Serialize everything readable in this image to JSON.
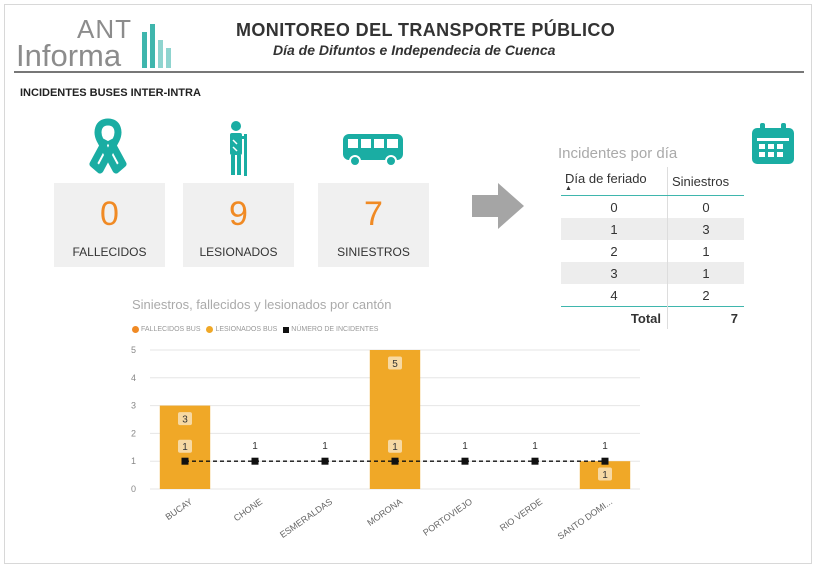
{
  "header": {
    "logo_top": "ANT",
    "logo_bottom": "Informa",
    "title": "MONITOREO DEL TRANSPORTE PÚBLICO",
    "subtitle": "Día de Difuntos e Independecia de Cuenca"
  },
  "section_title": "INCIDENTES BUSES INTER-INTRA",
  "kpis": [
    {
      "value": "0",
      "label": "FALLECIDOS",
      "icon": "ribbon-icon"
    },
    {
      "value": "9",
      "label": "LESIONADOS",
      "icon": "injured-person-icon"
    },
    {
      "value": "7",
      "label": "SINIESTROS",
      "icon": "bus-icon"
    }
  ],
  "colors": {
    "teal": "#1aada3",
    "orange": "#f08a24",
    "bar": "#f0a827",
    "kpi_bg": "#f0f0f0"
  },
  "day_table": {
    "title": "Incidentes por día",
    "headers": [
      "Día de feriado",
      "Siniestros"
    ],
    "rows": [
      [
        "0",
        "0"
      ],
      [
        "1",
        "3"
      ],
      [
        "2",
        "1"
      ],
      [
        "3",
        "1"
      ],
      [
        "4",
        "2"
      ]
    ],
    "total_label": "Total",
    "total_value": "7"
  },
  "chart_data": {
    "type": "bar",
    "title": "Siniestros, fallecidos y lesionados por cantón",
    "legend": [
      "FALLECIDOS BUS",
      "LESIONADOS BUS",
      "NÚMERO DE INCIDENTES"
    ],
    "categories": [
      "BUCAY",
      "CHONE",
      "ESMERALDAS",
      "MORONA",
      "PORTOVIEJO",
      "RIO VERDE",
      "SANTO DOMI..."
    ],
    "series": [
      {
        "name": "FALLECIDOS BUS",
        "values": [
          0,
          0,
          0,
          0,
          0,
          0,
          0
        ]
      },
      {
        "name": "LESIONADOS BUS",
        "values": [
          3,
          0,
          0,
          5,
          0,
          0,
          1
        ]
      },
      {
        "name": "NÚMERO DE INCIDENTES",
        "values": [
          1,
          1,
          1,
          1,
          1,
          1,
          1
        ]
      }
    ],
    "yticks": [
      "0",
      "1",
      "2",
      "3",
      "4",
      "5"
    ],
    "ylim": [
      0,
      5
    ],
    "legend_position": "top-left",
    "grid": true
  }
}
